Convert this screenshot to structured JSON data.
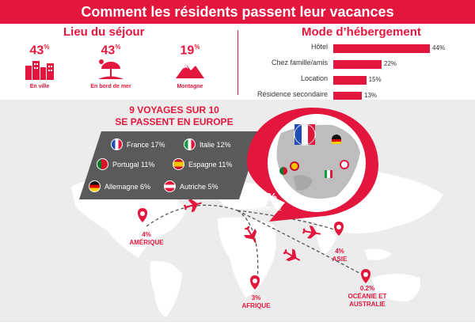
{
  "header": {
    "title": "Comment les résidents passent leur vacances"
  },
  "lieu": {
    "title": "Lieu du séjour",
    "items": [
      {
        "value": "43",
        "unit": "%",
        "label": "En ville",
        "icon": "city-icon"
      },
      {
        "value": "43",
        "unit": "%",
        "label": "En bord de mer",
        "icon": "beach-umbrella-icon"
      },
      {
        "value": "19",
        "unit": "%",
        "label": "Montagne",
        "icon": "mountain-icon"
      }
    ]
  },
  "mode": {
    "title": "Mode d’hébergement",
    "bars": [
      {
        "label": "Hôtel",
        "value": 44,
        "display": "44%"
      },
      {
        "label": "Chez famille/amis",
        "value": 22,
        "display": "22%"
      },
      {
        "label": "Location",
        "value": 15,
        "display": "15%"
      },
      {
        "label": "Résidence secondaire",
        "value": 13,
        "display": "13%"
      }
    ]
  },
  "europe": {
    "title_line1": "9 VOYAGES SUR 10",
    "title_line2": "SE PASSENT EN EUROPE",
    "countries": [
      {
        "label": "France 17%",
        "flag": "france"
      },
      {
        "label": "Italie 12%",
        "flag": "italy"
      },
      {
        "label": "Portugal 11%",
        "flag": "portugal"
      },
      {
        "label": "Espagne 11%",
        "flag": "spain"
      },
      {
        "label": "Allemagne 6%",
        "flag": "germany"
      },
      {
        "label": "Autriche 5%",
        "flag": "austria"
      }
    ],
    "callout_value": "88%",
    "callout_label": "EN EUROPE"
  },
  "regions": [
    {
      "value": "4%",
      "name": "AMÉRIQUE"
    },
    {
      "value": "4%",
      "name": "ASIE"
    },
    {
      "value": "3%",
      "name": "AFRIQUE"
    },
    {
      "value": "0.2%",
      "name": "OCÉANIE ET AUSTRALIE"
    }
  ],
  "colors": {
    "accent": "#e3173e",
    "panel": "#5a5a5a",
    "map": "#ececec",
    "land": "#ffffff"
  },
  "chart_data": [
    {
      "type": "bar",
      "title": "Mode d’hébergement",
      "categories": [
        "Hôtel",
        "Chez famille/amis",
        "Location",
        "Résidence secondaire"
      ],
      "values": [
        44,
        22,
        15,
        13
      ],
      "orientation": "horizontal",
      "xlim": [
        0,
        44
      ]
    },
    {
      "type": "table",
      "title": "Lieu du séjour",
      "categories": [
        "En ville",
        "En bord de mer",
        "Montagne"
      ],
      "values": [
        43,
        43,
        19
      ]
    }
  ]
}
